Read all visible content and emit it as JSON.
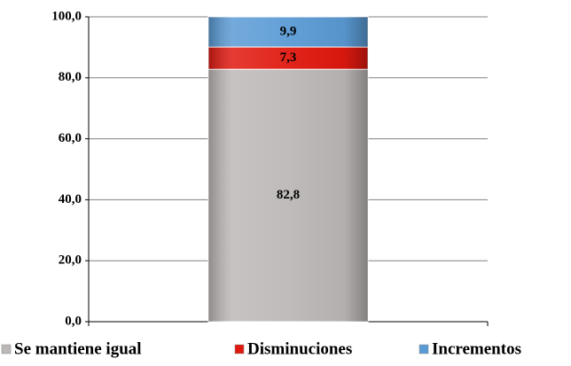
{
  "chart_data": {
    "type": "stacked_bar",
    "categories": [
      null
    ],
    "series": [
      {
        "name": "Se mantiene igual",
        "color": "#bdb8b8",
        "values": [
          82.8
        ],
        "value_labels": [
          "82,8"
        ]
      },
      {
        "name": "Disminuciones",
        "color": "#e0190f",
        "values": [
          7.3
        ],
        "value_labels": [
          "7,3"
        ]
      },
      {
        "name": "Incrementos",
        "color": "#5b9bd5",
        "values": [
          9.9
        ],
        "value_labels": [
          "9,9"
        ]
      }
    ],
    "ylim": [
      0,
      100
    ],
    "yticks": [
      {
        "value": 0,
        "label": "0,0"
      },
      {
        "value": 20,
        "label": "20,0"
      },
      {
        "value": 40,
        "label": "40,0"
      },
      {
        "value": 60,
        "label": "60,0"
      },
      {
        "value": 80,
        "label": "80,0"
      },
      {
        "value": 100,
        "label": "100,0"
      }
    ],
    "grid": true,
    "legend": "bottom"
  }
}
